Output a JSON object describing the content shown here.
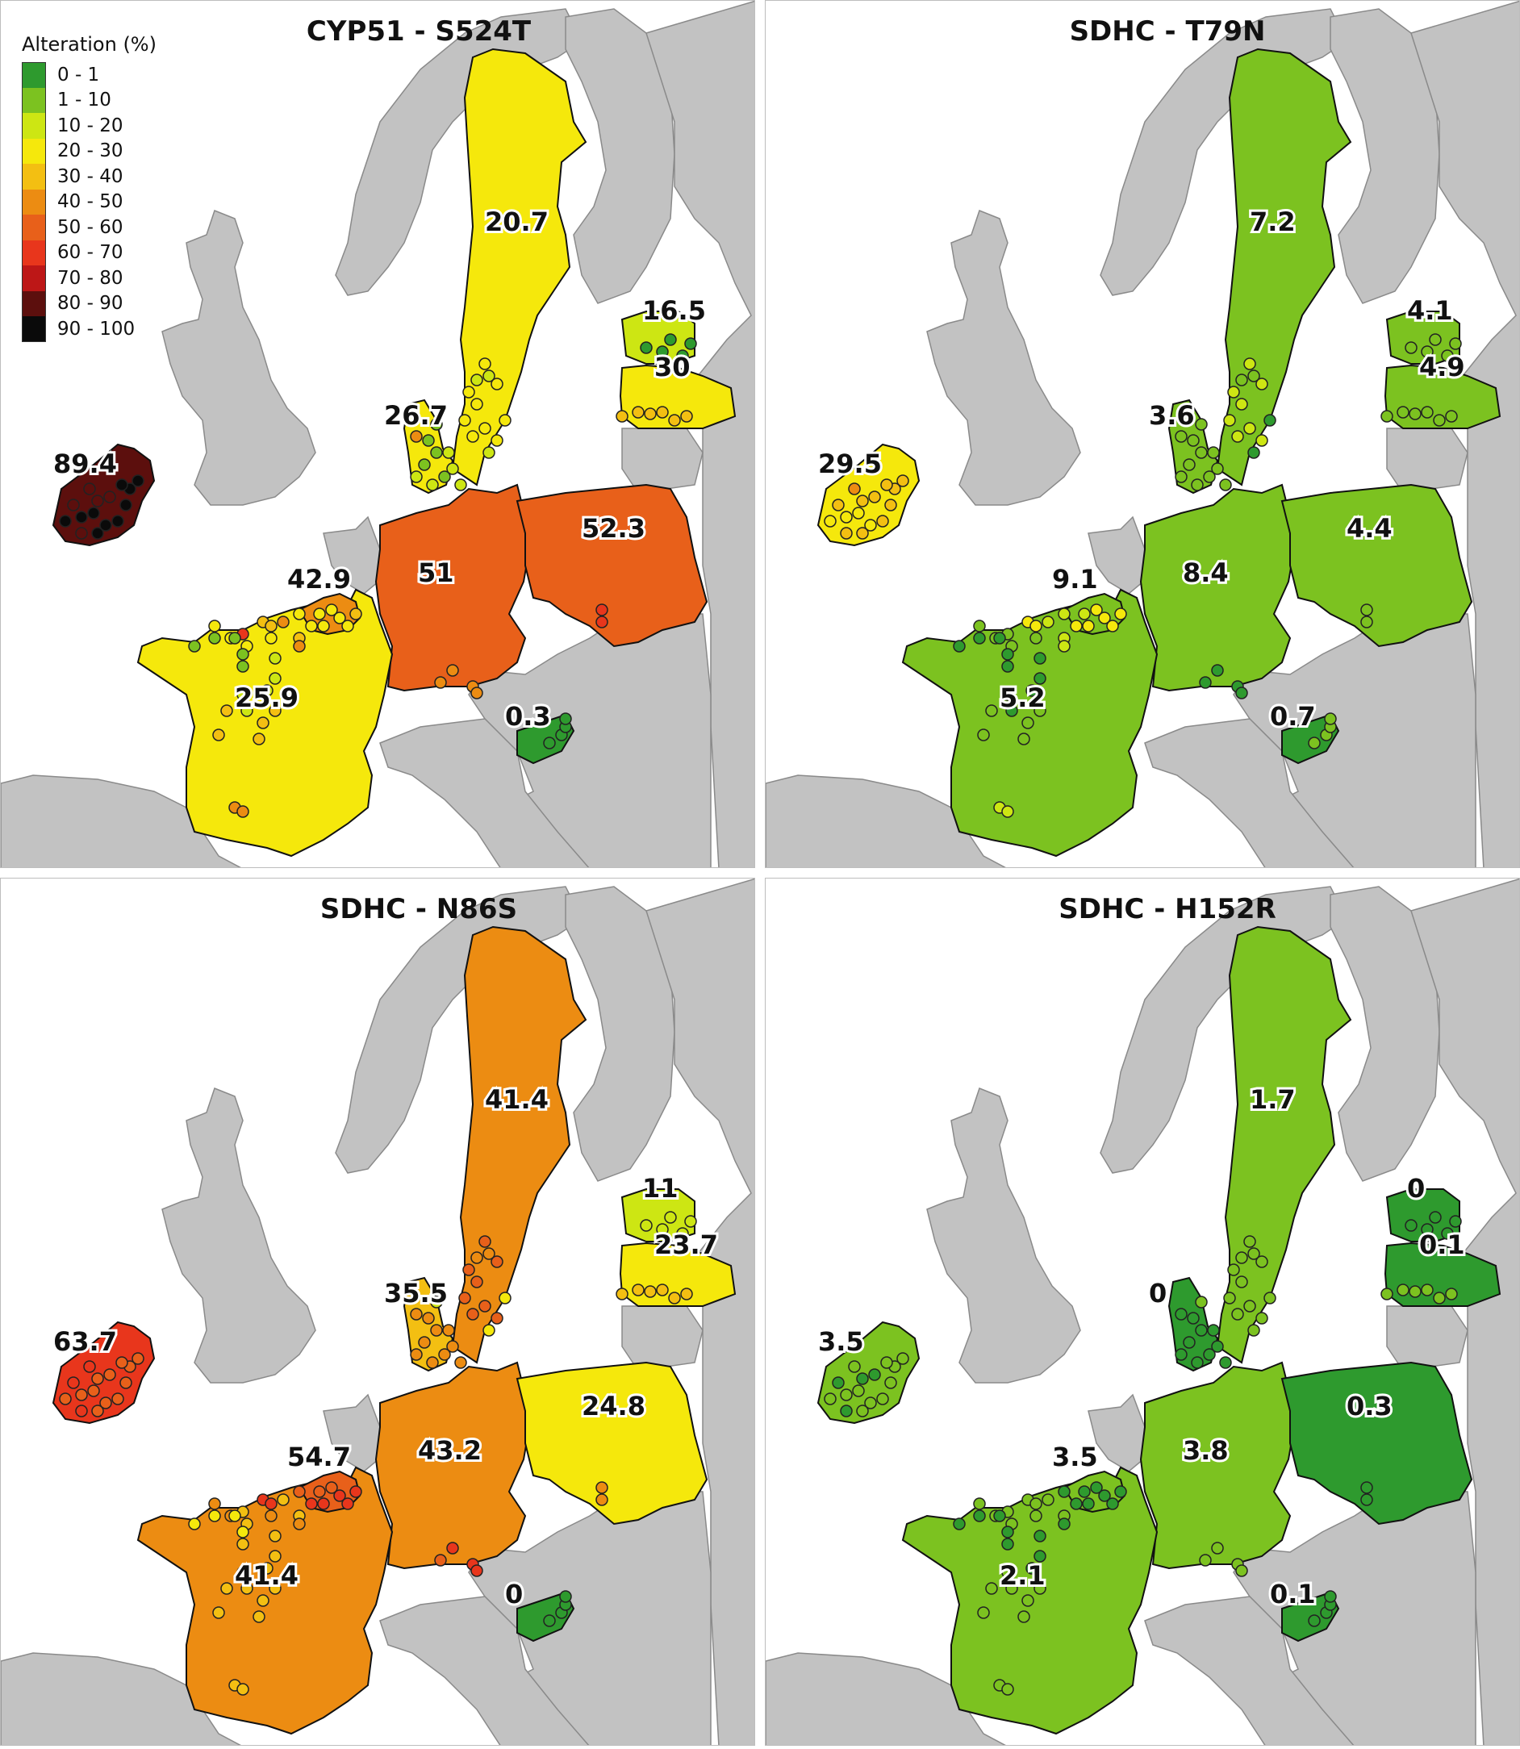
{
  "legend": {
    "title": "Alteration (%)",
    "classes": [
      {
        "label": "0 - 1",
        "color": "#2e9a2e"
      },
      {
        "label": "1 - 10",
        "color": "#7cc220"
      },
      {
        "label": "10 - 20",
        "color": "#cde613"
      },
      {
        "label": "20 - 30",
        "color": "#f5e80c"
      },
      {
        "label": "30 - 40",
        "color": "#f3bf12"
      },
      {
        "label": "40 - 50",
        "color": "#ec8c12"
      },
      {
        "label": "50 - 60",
        "color": "#e8601a"
      },
      {
        "label": "60 - 70",
        "color": "#e8361c"
      },
      {
        "label": "70 - 80",
        "color": "#bd1717"
      },
      {
        "label": "80 - 90",
        "color": "#5c0f0d"
      },
      {
        "label": "90 - 100",
        "color": "#0a0a0a"
      }
    ]
  },
  "basemap_colors": {
    "land": "#c2c2c2",
    "water": "#ffffff",
    "border": "#8a8a8a"
  },
  "panels": [
    {
      "title": "CYP51 - S524T",
      "countries": {
        "ireland": 89.4,
        "denmark": 26.7,
        "sweden": 20.7,
        "estonia": 16.5,
        "latvia": 30,
        "germany": 51,
        "poland": 52.3,
        "belgium": 42.9,
        "france": 25.9,
        "slovenia": 0.3
      }
    },
    {
      "title": "SDHC - T79N",
      "countries": {
        "ireland": 29.5,
        "denmark": 3.6,
        "sweden": 7.2,
        "estonia": 4.1,
        "latvia": 4.9,
        "germany": 8.4,
        "poland": 4.4,
        "belgium": 9.1,
        "france": 5.2,
        "slovenia": 0.7
      }
    },
    {
      "title": "SDHC - N86S",
      "countries": {
        "ireland": 63.7,
        "denmark": 35.5,
        "sweden": 41.4,
        "estonia": 11,
        "latvia": 23.7,
        "germany": 43.2,
        "poland": 24.8,
        "belgium": 54.7,
        "france": 41.4,
        "slovenia": 0
      }
    },
    {
      "title": "SDHC - H152R",
      "countries": {
        "ireland": 3.5,
        "denmark": 0,
        "sweden": 1.7,
        "estonia": 0,
        "latvia": 0.1,
        "germany": 3.8,
        "poland": 0.3,
        "belgium": 3.5,
        "france": 2.1,
        "slovenia": 0.1
      }
    }
  ]
}
